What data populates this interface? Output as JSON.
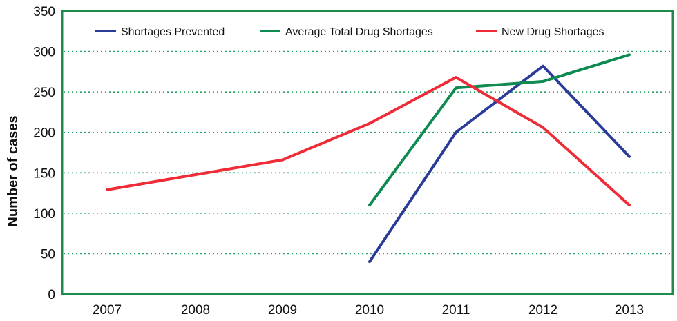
{
  "chart_data": {
    "type": "line",
    "title": "",
    "xlabel": "",
    "ylabel": "Number of cases",
    "categories": [
      "2007",
      "2008",
      "2009",
      "2010",
      "2011",
      "2012",
      "2013"
    ],
    "ylim": [
      0,
      350
    ],
    "yticks": [
      0,
      50,
      100,
      150,
      200,
      250,
      300,
      350
    ],
    "grid": "horizontal dotted",
    "legend_position": "top",
    "series": [
      {
        "name": "Shortages Prevented",
        "color": "#2b3c98",
        "values": [
          null,
          null,
          null,
          40,
          200,
          282,
          170
        ]
      },
      {
        "name": "Average Total Drug Shortages",
        "color": "#0f8a50",
        "values": [
          null,
          null,
          null,
          110,
          255,
          263,
          296
        ]
      },
      {
        "name": "New Drug Shortages",
        "color": "#ee2b36",
        "values": [
          129,
          null,
          166,
          211,
          268,
          206,
          110
        ]
      }
    ],
    "frame_color": "#1f8a4c",
    "grid_color": "#2aa36a"
  }
}
